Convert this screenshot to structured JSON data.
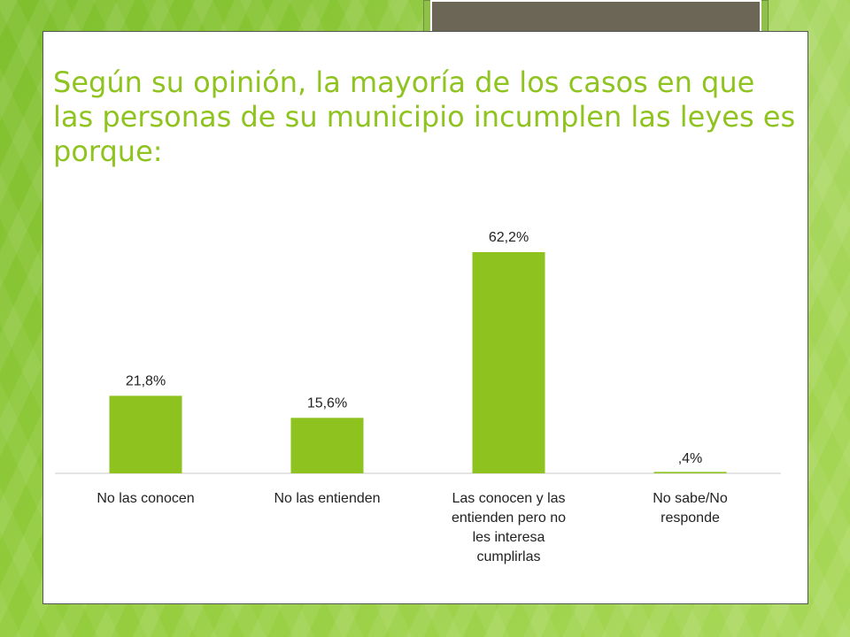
{
  "slide": {
    "title": "Según su opinión, la mayoría de los casos en que las personas de su municipio incumplen las leyes es porque:"
  },
  "colors": {
    "bar": "#8dc21f",
    "title": "#8fc31f",
    "background": "#8fc04a"
  },
  "chart_data": {
    "type": "bar",
    "title": "Según su opinión, la mayoría de los casos en que las personas de su municipio incumplen las leyes es porque:",
    "xlabel": "",
    "ylabel": "",
    "unit": "%",
    "grid": false,
    "legend": "none",
    "ylim": [
      0,
      70
    ],
    "categories": [
      [
        "No las conocen"
      ],
      [
        "No las entienden"
      ],
      [
        "Las conocen y las",
        "entienden pero no",
        "les interesa",
        "cumplirlas"
      ],
      [
        "No sabe/No",
        "responde"
      ]
    ],
    "values": [
      21.8,
      15.6,
      62.2,
      0.4
    ],
    "data_labels": [
      "21,8%",
      "15,6%",
      "62,2%",
      ",4%"
    ]
  }
}
